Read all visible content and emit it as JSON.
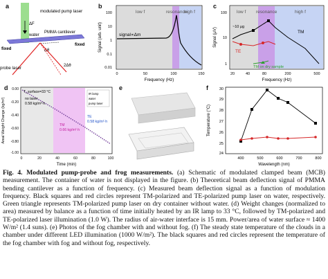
{
  "panel_a": {
    "label": "a",
    "modulated_pump_laser": "modulated pump laser",
    "delta_f": "ΔF",
    "water": "water",
    "pmma": "PMMA cantilever",
    "fixed_left": "fixed",
    "fixed_right": "fixed",
    "delta_theta": "Δθ",
    "probe_laser": "probe laser",
    "two_delta_theta": "2Δθ"
  },
  "panel_b": {
    "label": "b",
    "ylabel": "Signal (arb. unit)",
    "xlabel": "Frequency (Hz)",
    "region_low": "low f",
    "region_res": "resonance",
    "region_high": "high f",
    "annotation": "signal∝Δm",
    "yticks": [
      "100",
      "10",
      "1",
      "0.1",
      "0.01"
    ],
    "xticks": [
      "0",
      "50",
      "100",
      "150"
    ]
  },
  "panel_c": {
    "label": "c",
    "ylabel": "Signal (μV)",
    "xlabel": "Frequency (Hz)",
    "region_low": "low f",
    "region_res": "resonance",
    "region_high": "high f",
    "yticks": [
      "100",
      "10",
      "1"
    ],
    "xticks": [
      "20",
      "40",
      "80",
      "200",
      "500"
    ],
    "tm_label": "TM",
    "te_label": "TE",
    "dry_label": "TM on dry sample",
    "unit_label": "~10 μg"
  },
  "panel_d": {
    "label": "d",
    "ylabel": "Areal Weight Change (kg/m²)",
    "xlabel": "Time (min)",
    "t_surface": "T_surface=33 °C",
    "no_laser": "no laser",
    "no_laser_rate": "0.58 kg/m²·h",
    "tm": "TM",
    "tm_rate": "0.66 kg/m²·h",
    "te": "TE",
    "te_rate": "0.58 kg/m²·h",
    "legend_ir": "IR lamp",
    "legend_water": "water",
    "legend_laser": "pump laser",
    "xticks": [
      "0",
      "20",
      "40",
      "60",
      "80",
      "100"
    ],
    "yticks": [
      "0.00",
      "-0.20",
      "-0.40",
      "-0.60",
      "-0.80",
      "-1.00"
    ]
  },
  "panel_e": {
    "label": "e"
  },
  "panel_f": {
    "label": "f",
    "ylabel": "Temperature (°C)",
    "xlabel": "Wavelength (nm)",
    "yticks": [
      "30",
      "29",
      "28",
      "27",
      "26",
      "25",
      "24"
    ],
    "xticks": [
      "400",
      "500",
      "600",
      "700",
      "800"
    ]
  },
  "caption": {
    "lead": "Fig. 4. Modulated pump-probe and frog measurements.",
    "body": " (a) Schematic of modulated clamped beam (MCB) measurement. The container of water is not displayed in the figure. (b) Theoretical beam deflection signal of PMMA bending cantilever as a function of frequency. (c) Measured beam deflection signal as a function of modulation frequency. Black squares and red circles represent TM-polarized and TE-polarized pump laser on water, respectively. Green triangle represents TM-polarized pump laser on dry container without water. (d) Weight changes (normalized to area) measured by balance as a function of time initially heated by an IR lamp to 33 °C, followed by TM-polarized and TE-polarized laser illumination (1.0 W). The radius of air-water interface is 15 mm. Power/area of water surface ≈ 1400 W/m² (1.4 suns). (e) Photos of the fog chamber with and without fog. (f) The steady state temperature of the clouds in a chamber under different LED illumination (1000 W/m²). The black squares and red circles represent the temperature of the fog chamber with fog and without fog, respectively."
  },
  "colors": {
    "tm": "#000000",
    "te": "#d62728",
    "dry": "#2ca02c",
    "resonance": "#c9a0e8",
    "lowf": "#c8c8c8",
    "highf": "#b8c8f0"
  }
}
